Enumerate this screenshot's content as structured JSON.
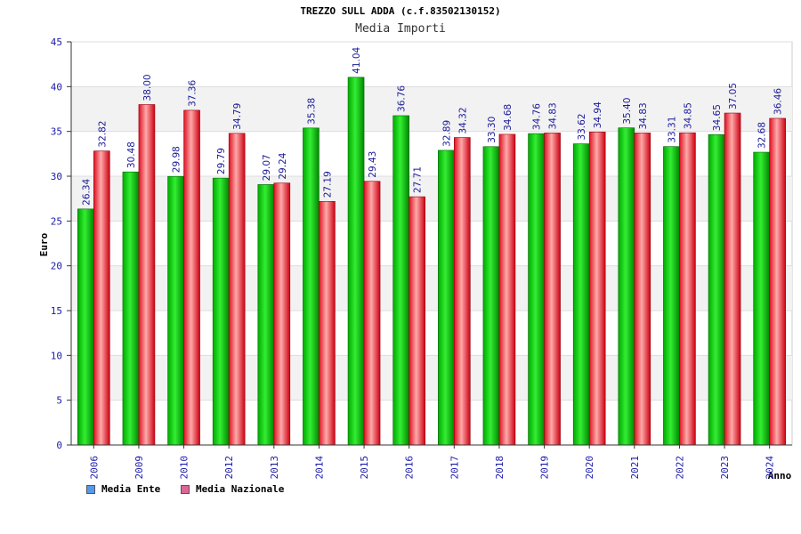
{
  "chart_data": {
    "type": "bar",
    "title": "TREZZO SULL ADDA (c.f.83502130152)",
    "subtitle": "Media Importi",
    "xlabel": "Anno",
    "ylabel": "Euro",
    "ylim": [
      0,
      45
    ],
    "yticks": [
      0,
      5,
      10,
      15,
      20,
      25,
      30,
      35,
      40,
      45
    ],
    "grid": true,
    "legend_position": "bottom-left",
    "categories": [
      "2006",
      "2009",
      "2010",
      "2012",
      "2013",
      "2014",
      "2015",
      "2016",
      "2017",
      "2018",
      "2019",
      "2020",
      "2021",
      "2022",
      "2023",
      "2024"
    ],
    "series": [
      {
        "name": "Media Ente",
        "color": "#00bb00",
        "values": [
          26.34,
          30.48,
          29.98,
          29.79,
          29.07,
          35.38,
          41.04,
          36.76,
          32.89,
          33.3,
          34.76,
          33.62,
          35.4,
          33.31,
          34.65,
          32.68
        ],
        "labels": [
          "26.34",
          "30.48",
          "29.98",
          "29.79",
          "29.07",
          "35.38",
          "41.04",
          "36.76",
          "32.89",
          "33.30",
          "34.76",
          "33.62",
          "35.40",
          "33.31",
          "34.65",
          "32.68"
        ]
      },
      {
        "name": "Media Nazionale",
        "color": "#ee2233",
        "values": [
          32.82,
          38.0,
          37.36,
          34.79,
          29.24,
          27.19,
          29.43,
          27.71,
          34.32,
          34.68,
          34.83,
          34.94,
          34.83,
          34.85,
          37.05,
          36.46
        ],
        "labels": [
          "32.82",
          "38.00",
          "37.36",
          "34.79",
          "29.24",
          "27.19",
          "29.43",
          "27.71",
          "34.32",
          "34.68",
          "34.83",
          "34.94",
          "34.83",
          "34.85",
          "37.05",
          "36.46"
        ]
      }
    ]
  },
  "legend": {
    "ente_label": "Media Ente",
    "ente_swatch_color": "#5599ee",
    "nazionale_label": "Media Nazionale",
    "nazionale_swatch_color": "#dd6699"
  }
}
